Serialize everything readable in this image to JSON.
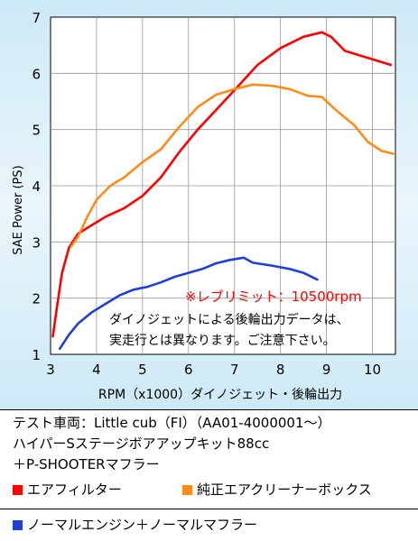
{
  "chart_data": {
    "type": "line",
    "xlabel": "RPM（x1000）ダイノジェット・後輪出力",
    "ylabel": "SAE Power (PS)",
    "xlim": [
      3,
      10.5
    ],
    "ylim": [
      1,
      7
    ],
    "x_ticks": [
      "3",
      "4",
      "5",
      "6",
      "7",
      "8",
      "9",
      "10"
    ],
    "y_ticks": [
      "1",
      "2",
      "3",
      "4",
      "5",
      "6",
      "7"
    ],
    "grid": true,
    "series": [
      {
        "name": "エアフィルター",
        "color": "#ff0000",
        "points": [
          [
            3.05,
            1.32
          ],
          [
            3.15,
            1.9
          ],
          [
            3.25,
            2.45
          ],
          [
            3.4,
            2.9
          ],
          [
            3.6,
            3.15
          ],
          [
            3.9,
            3.3
          ],
          [
            4.2,
            3.45
          ],
          [
            4.6,
            3.6
          ],
          [
            5.0,
            3.82
          ],
          [
            5.4,
            4.15
          ],
          [
            5.8,
            4.6
          ],
          [
            6.2,
            5.0
          ],
          [
            6.6,
            5.35
          ],
          [
            7.0,
            5.7
          ],
          [
            7.5,
            6.15
          ],
          [
            8.0,
            6.45
          ],
          [
            8.5,
            6.65
          ],
          [
            8.9,
            6.73
          ],
          [
            9.1,
            6.65
          ],
          [
            9.4,
            6.4
          ],
          [
            9.8,
            6.3
          ],
          [
            10.4,
            6.15
          ]
        ]
      },
      {
        "name": "純正エアクリーナーボックス",
        "color": "#ff8c1a",
        "points": [
          [
            3.45,
            2.92
          ],
          [
            3.6,
            3.1
          ],
          [
            3.8,
            3.45
          ],
          [
            4.0,
            3.75
          ],
          [
            4.3,
            4.0
          ],
          [
            4.6,
            4.15
          ],
          [
            5.0,
            4.42
          ],
          [
            5.4,
            4.65
          ],
          [
            5.8,
            5.05
          ],
          [
            6.2,
            5.4
          ],
          [
            6.6,
            5.62
          ],
          [
            7.0,
            5.72
          ],
          [
            7.4,
            5.8
          ],
          [
            7.8,
            5.78
          ],
          [
            8.2,
            5.72
          ],
          [
            8.6,
            5.6
          ],
          [
            8.9,
            5.58
          ],
          [
            9.2,
            5.35
          ],
          [
            9.6,
            5.08
          ],
          [
            9.9,
            4.78
          ],
          [
            10.2,
            4.62
          ],
          [
            10.45,
            4.57
          ]
        ]
      },
      {
        "name": "ノーマルエンジン＋ノーマルマフラー",
        "color": "#1f3fd6",
        "points": [
          [
            3.2,
            1.1
          ],
          [
            3.4,
            1.35
          ],
          [
            3.6,
            1.55
          ],
          [
            3.9,
            1.75
          ],
          [
            4.2,
            1.9
          ],
          [
            4.5,
            2.05
          ],
          [
            4.8,
            2.15
          ],
          [
            5.1,
            2.2
          ],
          [
            5.4,
            2.28
          ],
          [
            5.7,
            2.38
          ],
          [
            6.0,
            2.45
          ],
          [
            6.3,
            2.52
          ],
          [
            6.6,
            2.62
          ],
          [
            6.9,
            2.68
          ],
          [
            7.2,
            2.72
          ],
          [
            7.4,
            2.63
          ],
          [
            7.8,
            2.58
          ],
          [
            8.2,
            2.52
          ],
          [
            8.5,
            2.45
          ],
          [
            8.8,
            2.33
          ]
        ]
      }
    ],
    "annotations": {
      "redline": "※レブリミット：10500rpm",
      "note_line1": "ダイノジェットによる後輪出力データは、",
      "note_line2": "実走行とは異なります。ご注意下さい。"
    }
  },
  "info": {
    "line1": "テスト車両：Little cub（FI）（AA01-4000001〜）",
    "line2": "ハイパーSステージボアアップキット88cc",
    "line3": "＋P-SHOOTERマフラー"
  },
  "legend": {
    "item1": "エアフィルター",
    "item2": "純正エアクリーナーボックス",
    "item3": "ノーマルエンジン＋ノーマルマフラー",
    "color1": "#ff0000",
    "color2": "#ff8c1a",
    "color3": "#1f3fd6"
  }
}
